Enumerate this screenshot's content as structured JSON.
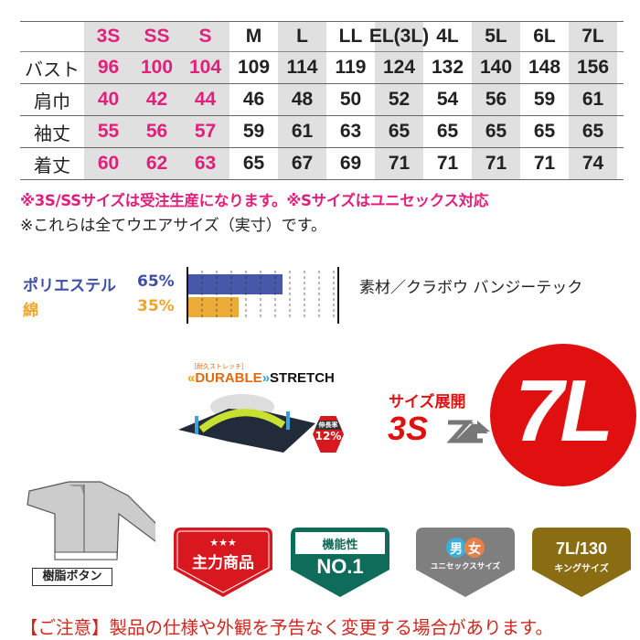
{
  "size_table": {
    "sizes": [
      "3S",
      "SS",
      "S",
      "M",
      "L",
      "LL",
      "EL(3L)",
      "4L",
      "5L",
      "6L",
      "7L"
    ],
    "rows": [
      {
        "label": "バスト",
        "values": [
          "96",
          "100",
          "104",
          "109",
          "114",
          "119",
          "124",
          "132",
          "140",
          "148",
          "156"
        ]
      },
      {
        "label": "肩巾",
        "values": [
          "40",
          "42",
          "44",
          "46",
          "48",
          "50",
          "52",
          "54",
          "56",
          "59",
          "61"
        ]
      },
      {
        "label": "袖丈",
        "values": [
          "55",
          "56",
          "57",
          "59",
          "61",
          "63",
          "65",
          "65",
          "65",
          "65",
          "65"
        ]
      },
      {
        "label": "着丈",
        "values": [
          "60",
          "62",
          "63",
          "65",
          "67",
          "69",
          "71",
          "71",
          "71",
          "71",
          "74"
        ]
      }
    ],
    "highlight_color": "#e0207a"
  },
  "notes": {
    "order_note": "※3S/SSサイズは受注生産になります。※Sサイズはユニセックス対応",
    "size_note": "※これらは全てウエアサイズ（実寸）です。"
  },
  "material": {
    "items": [
      {
        "name": "ポリエステル",
        "percent": 65,
        "label": "65%",
        "color": "#3d4fa6"
      },
      {
        "name": "綿",
        "percent": 35,
        "label": "35%",
        "color": "#eba52c"
      }
    ],
    "fabric": "素材／クラボウ バンジーテック"
  },
  "stretch": {
    "sub": "［耐久ストレッチ］",
    "title1": "DURABLE",
    "title2": "STRETCH",
    "rate_label": "伸長率",
    "rate": "12%"
  },
  "size_range": {
    "label": "サイズ展開",
    "from": "3S",
    "to": "7L"
  },
  "button_label": "樹脂ボタン",
  "badges": [
    {
      "stars": "★★★",
      "text": "主力商品",
      "color": "#d9171e"
    },
    {
      "top": "機能性",
      "text": "NO.1",
      "color": "#0f6b5a"
    },
    {
      "male": "男",
      "female": "女",
      "text": "ユニセックスサイズ",
      "color": "#7f7f7f"
    },
    {
      "top": "7L/130",
      "text": "キングサイズ",
      "color": "#8a6d12"
    }
  ],
  "caution": "【ご注意】製品の仕様や外観を予告なく変更する場合があります。"
}
